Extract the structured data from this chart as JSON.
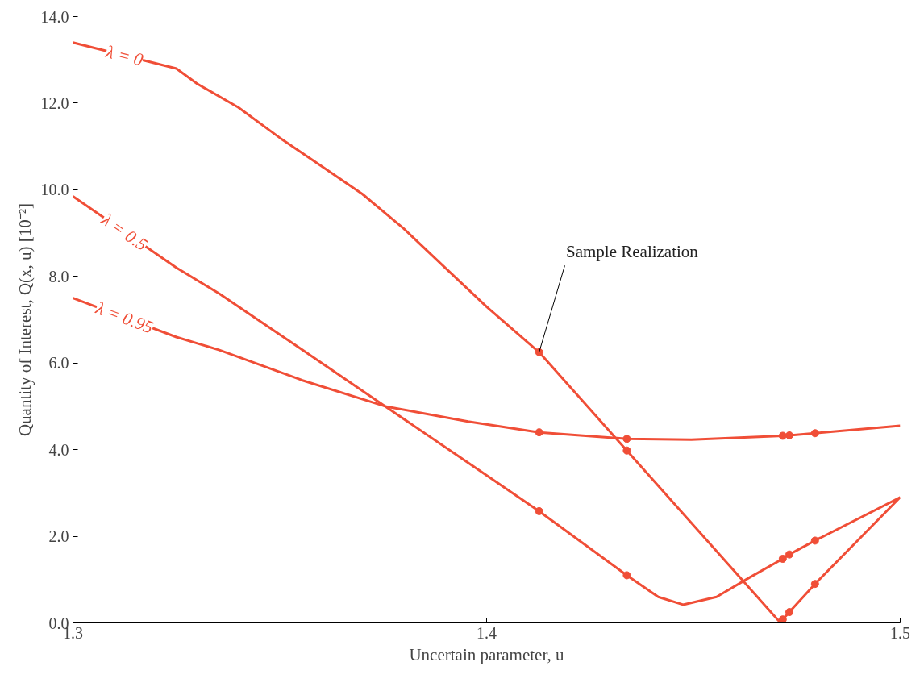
{
  "chart_data": {
    "type": "line",
    "xlabel": "Uncertain parameter, u",
    "ylabel": "Quantity of Interest, Q(x, u) [10⁻²]",
    "xlim": [
      1.3,
      1.5
    ],
    "ylim": [
      0,
      14
    ],
    "xticks": [
      {
        "value": 1.3,
        "label": "1.3"
      },
      {
        "value": 1.4,
        "label": "1.4"
      },
      {
        "value": 1.5,
        "label": "1.5"
      }
    ],
    "yticks": [
      {
        "value": 0,
        "label": "0.0"
      },
      {
        "value": 2,
        "label": "2.0"
      },
      {
        "value": 4,
        "label": "4.0"
      },
      {
        "value": 6,
        "label": "6.0"
      },
      {
        "value": 8,
        "label": "8.0"
      },
      {
        "value": 10,
        "label": "10.0"
      },
      {
        "value": 12,
        "label": "12.0"
      },
      {
        "value": 14,
        "label": "14.0"
      }
    ],
    "grid": false,
    "marker": "none",
    "line_style": "solid",
    "annotations": [
      {
        "text": "Sample Realization",
        "x": 1.4127,
        "y": 6.25
      }
    ],
    "series": [
      {
        "name": "λ = 0",
        "color": "#f04e37",
        "x": [
          1.3,
          1.325,
          1.33,
          1.34,
          1.35,
          1.36,
          1.37,
          1.38,
          1.39,
          1.4,
          1.4127,
          1.4339,
          1.4706,
          1.4716,
          1.4732,
          1.4794,
          1.5
        ],
        "values": [
          13.4,
          12.8,
          12.45,
          11.9,
          11.2,
          10.55,
          9.9,
          9.1,
          8.2,
          7.3,
          6.25,
          3.98,
          0.05,
          0.08,
          0.25,
          0.9,
          2.9
        ]
      },
      {
        "name": "λ = 0.5",
        "color": "#f04e37",
        "x": [
          1.3,
          1.325,
          1.3354,
          1.3555,
          1.3755,
          1.3955,
          1.4127,
          1.4339,
          1.4415,
          1.4475,
          1.4556,
          1.4636,
          1.4716,
          1.4732,
          1.4794,
          1.5
        ],
        "values": [
          9.85,
          8.2,
          7.6,
          6.3,
          5.0,
          3.7,
          2.58,
          1.1,
          0.6,
          0.42,
          0.6,
          1.05,
          1.48,
          1.58,
          1.9,
          2.9
        ]
      },
      {
        "name": "λ = 0.95",
        "color": "#f04e37",
        "x": [
          1.3,
          1.325,
          1.3354,
          1.3555,
          1.3755,
          1.3955,
          1.4127,
          1.4339,
          1.4495,
          1.4716,
          1.4732,
          1.4794,
          1.5
        ],
        "values": [
          7.5,
          6.6,
          6.3,
          5.6,
          5.0,
          4.65,
          4.4,
          4.25,
          4.23,
          4.32,
          4.33,
          4.38,
          4.55
        ]
      },
      {
        "type": "scatter",
        "marker": "circle",
        "color": "#f04e37",
        "x": [
          1.4127,
          1.4339,
          1.4716,
          1.4732,
          1.4794,
          1.4127,
          1.4339,
          1.4716,
          1.4732,
          1.4794,
          1.4127,
          1.4339,
          1.4716,
          1.4732,
          1.4794
        ],
        "values": [
          6.25,
          3.98,
          0.08,
          0.25,
          0.9,
          2.58,
          1.1,
          1.48,
          1.58,
          1.9,
          4.4,
          4.25,
          4.32,
          4.33,
          4.38
        ]
      }
    ]
  }
}
